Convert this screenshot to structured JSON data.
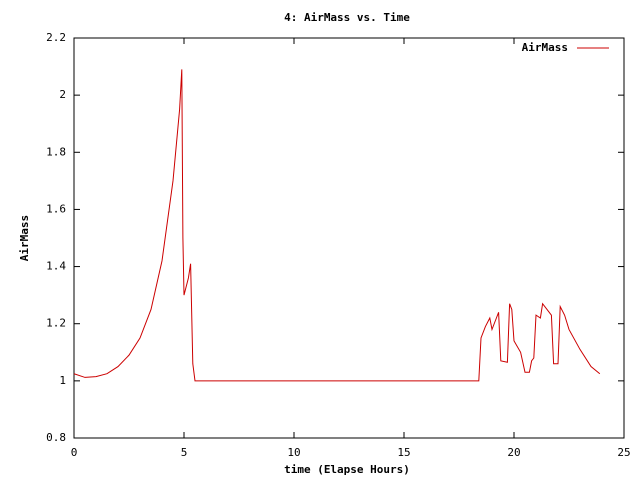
{
  "chart_data": {
    "type": "line",
    "title": "4: AirMass vs. Time",
    "xlabel": "time (Elapse Hours)",
    "ylabel": "AirMass",
    "xlim": [
      0,
      25
    ],
    "xticks": [
      0,
      5,
      10,
      15,
      20,
      25
    ],
    "ylim": [
      0.8,
      2.2
    ],
    "yticks": [
      0.8,
      1,
      1.2,
      1.4,
      1.6,
      1.8,
      2,
      2.2
    ],
    "legend": "upper right",
    "series": [
      {
        "name": "AirMass",
        "color": "#cc0000",
        "x": [
          0,
          0.5,
          1,
          1.5,
          2,
          2.5,
          3,
          3.5,
          4,
          4.5,
          4.8,
          4.9,
          4.95,
          5.0,
          5.2,
          5.3,
          5.4,
          5.5,
          18.4,
          18.5,
          18.7,
          18.9,
          19.0,
          19.2,
          19.3,
          19.4,
          19.7,
          19.8,
          19.9,
          20.0,
          20.3,
          20.5,
          20.7,
          20.8,
          20.9,
          21.0,
          21.2,
          21.3,
          21.5,
          21.7,
          21.8,
          22.0,
          22.1,
          22.3,
          22.5,
          23,
          23.5,
          23.9
        ],
        "values": [
          1.025,
          1.012,
          1.015,
          1.025,
          1.05,
          1.09,
          1.15,
          1.25,
          1.42,
          1.7,
          1.95,
          2.09,
          1.5,
          1.3,
          1.36,
          1.41,
          1.06,
          1.0,
          1.0,
          1.15,
          1.19,
          1.22,
          1.18,
          1.22,
          1.24,
          1.07,
          1.065,
          1.27,
          1.25,
          1.14,
          1.1,
          1.03,
          1.03,
          1.07,
          1.08,
          1.23,
          1.22,
          1.27,
          1.25,
          1.23,
          1.06,
          1.06,
          1.26,
          1.23,
          1.18,
          1.11,
          1.05,
          1.025
        ]
      }
    ]
  }
}
